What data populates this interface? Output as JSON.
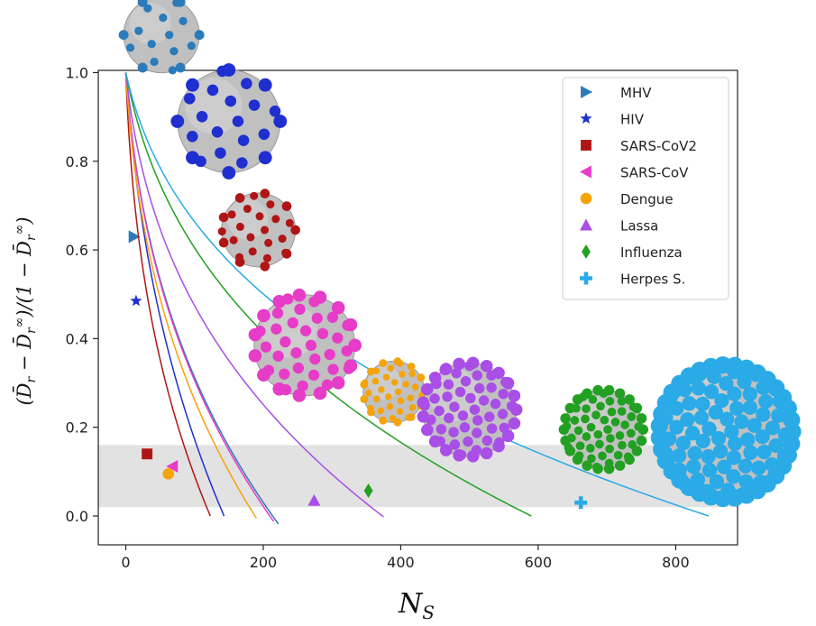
{
  "chart_data": {
    "type": "line",
    "title": "",
    "xlabel": "N_S",
    "ylabel": "(D̄_r − D̄_r^∞)/(1 − D̄_r^∞)",
    "xlim": [
      -40,
      890
    ],
    "ylim": [
      -0.065,
      1.005
    ],
    "x_ticks": [
      0,
      200,
      400,
      600,
      800
    ],
    "y_ticks": [
      0.0,
      0.2,
      0.4,
      0.6,
      0.8,
      1.0
    ],
    "grid": false,
    "legend_position": "top-right",
    "shaded_band": {
      "y0": 0.02,
      "y1": 0.16,
      "color": "#e2e2e2"
    },
    "series": [
      {
        "name": "MHV",
        "color": "#2b7bba",
        "marker": "triangle-right",
        "x_end": 222,
        "y_end": -0.018,
        "marker_point": [
          12,
          0.63
        ],
        "a": 8.8
      },
      {
        "name": "HIV",
        "color": "#1f2fd0",
        "marker": "star",
        "x_end": 143,
        "y_end": 0.0,
        "marker_point": [
          15,
          0.485
        ],
        "a": 12
      },
      {
        "name": "SARS-CoV2",
        "color": "#b01515",
        "marker": "square",
        "x_end": 123,
        "y_end": 0.0,
        "marker_point": [
          31,
          0.14
        ],
        "a": 4.2
      },
      {
        "name": "SARS-CoV",
        "color": "#e63cc8",
        "marker": "triangle-left",
        "x_end": 215,
        "y_end": -0.012,
        "marker_point": [
          68,
          0.112
        ],
        "a": 8.8
      },
      {
        "name": "Dengue",
        "color": "#f5a30a",
        "marker": "circle",
        "x_end": 190,
        "y_end": -0.005,
        "marker_point": [
          62,
          0.095
        ],
        "a": 7.2
      },
      {
        "name": "Lassa",
        "color": "#a94ee6",
        "marker": "triangle-up",
        "x_end": 375,
        "y_end": -0.002,
        "marker_point": [
          274,
          0.035
        ],
        "a": 11
      },
      {
        "name": "Influenza",
        "color": "#22a022",
        "marker": "diamond",
        "x_end": 590,
        "y_end": 0.0,
        "marker_point": [
          353,
          0.057
        ],
        "a": 21
      },
      {
        "name": "Herpes S.",
        "color": "#2aaae6",
        "marker": "plus",
        "x_end": 848,
        "y_end": 0.0,
        "marker_point": [
          662,
          0.03
        ],
        "a": 21
      }
    ],
    "virus_illustrations": [
      {
        "name": "MHV",
        "x": 52,
        "y": 1.085,
        "r": 42,
        "body": "#c0c0c0",
        "spike": "#2b7bba",
        "spikes": 12
      },
      {
        "name": "HIV",
        "x": 150,
        "y": 0.89,
        "r": 57,
        "body": "#c0c0c0",
        "spike": "#1f2fd0",
        "spikes": 16
      },
      {
        "name": "SARS-CoV2",
        "x": 193,
        "y": 0.645,
        "r": 41,
        "body": "#c0c0c0",
        "spike": "#b01515",
        "spikes": 18
      },
      {
        "name": "SARS-CoV",
        "x": 260,
        "y": 0.385,
        "r": 56,
        "body": "#c0c0c0",
        "spike": "#e63cc8",
        "spikes": 30
      },
      {
        "name": "Dengue",
        "x": 390,
        "y": 0.28,
        "r": 34,
        "body": "#c0c0c0",
        "spike": "#f5a30a",
        "spikes": 26
      },
      {
        "name": "Lassa",
        "x": 500,
        "y": 0.24,
        "r": 52,
        "body": "#c0c0c0",
        "spike": "#a94ee6",
        "spikes": 42
      },
      {
        "name": "Influenza",
        "x": 695,
        "y": 0.195,
        "r": 44,
        "body": "#c0c0c0",
        "spike": "#22a022",
        "spikes": 44
      },
      {
        "name": "Herpes S.",
        "x": 948,
        "y": 0.19,
        "r": 74,
        "body": "#c0c0c0",
        "spike": "#2aaae6",
        "spikes": 70
      }
    ]
  }
}
